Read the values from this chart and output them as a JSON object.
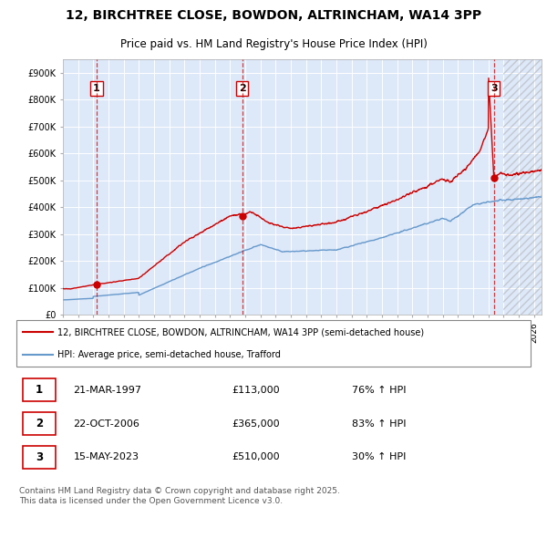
{
  "title1": "12, BIRCHTREE CLOSE, BOWDON, ALTRINCHAM, WA14 3PP",
  "title2": "Price paid vs. HM Land Registry's House Price Index (HPI)",
  "legend_line1": "12, BIRCHTREE CLOSE, BOWDON, ALTRINCHAM, WA14 3PP (semi-detached house)",
  "legend_line2": "HPI: Average price, semi-detached house, Trafford",
  "transactions": [
    {
      "num": 1,
      "date": "21-MAR-1997",
      "price": 113000,
      "hpi_pct": "76% ↑ HPI",
      "x_year": 1997.22
    },
    {
      "num": 2,
      "date": "22-OCT-2006",
      "price": 365000,
      "hpi_pct": "83% ↑ HPI",
      "x_year": 2006.81
    },
    {
      "num": 3,
      "date": "15-MAY-2023",
      "price": 510000,
      "hpi_pct": "30% ↑ HPI",
      "x_year": 2023.37
    }
  ],
  "property_color": "#cc0000",
  "hpi_color": "#6699cc",
  "background_color": "#eef3ff",
  "plot_bg": "#dde8f8",
  "grid_color": "#c8d8ee",
  "vline_color": "#cc0000",
  "ylim": [
    0,
    950000
  ],
  "xlim_start": 1995,
  "xlim_end": 2026.5,
  "footnote": "Contains HM Land Registry data © Crown copyright and database right 2025.\nThis data is licensed under the Open Government Licence v3.0.",
  "title_fontsize": 10,
  "subtitle_fontsize": 8.5
}
